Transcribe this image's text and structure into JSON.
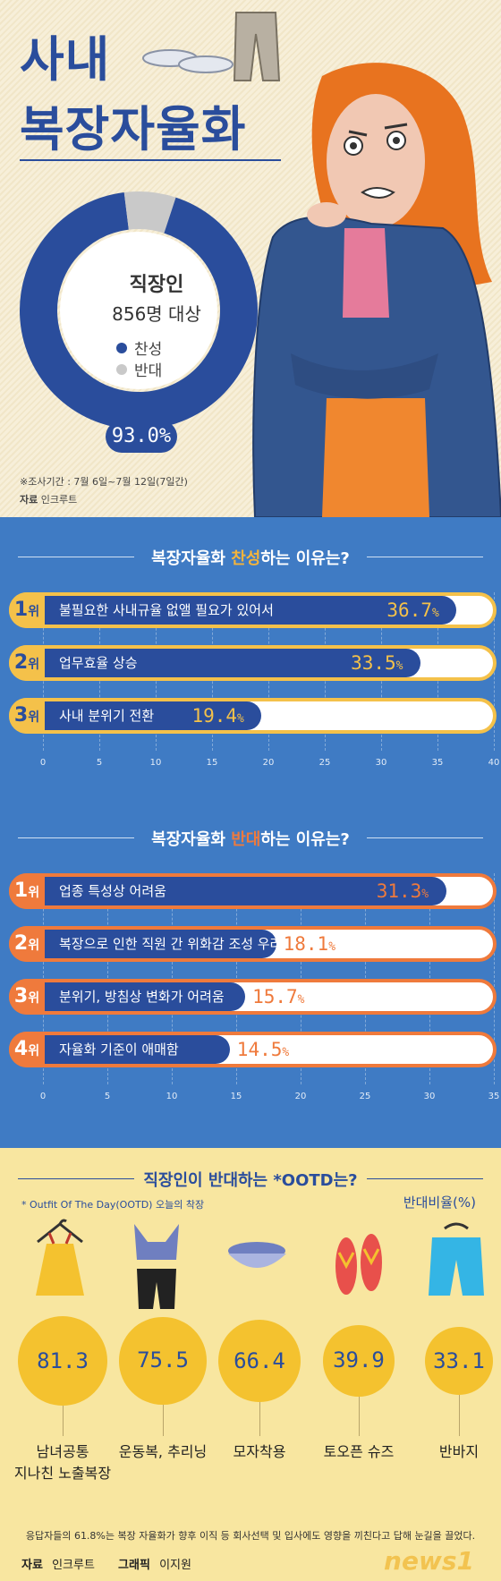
{
  "header": {
    "title_line1": "사내",
    "title_line2": "복장자율화"
  },
  "survey": {
    "subject_line1": "직장인",
    "subject_line2": "856명 대상",
    "legend_agree": "찬성",
    "legend_oppose": "반대",
    "agree_pct_label": "93.0%",
    "period": "※조사기간 : 7월 6일~7월 12일(7일간)",
    "source_label": "자료",
    "source_name": "인크루트",
    "colors": {
      "agree": "#2a4d9c",
      "oppose": "#c9c9c9"
    }
  },
  "chart_data": [
    {
      "type": "pie",
      "categories": [
        "찬성",
        "반대"
      ],
      "values": [
        93.0,
        7.0
      ],
      "subtitle": "직장인 856명 대상"
    },
    {
      "type": "bar",
      "title": "복장자율화 찬성하는 이유는?",
      "title_pre": "복장자율화 ",
      "title_hl": "찬성",
      "title_post": "하는 이유는?",
      "ranks": [
        "1",
        "2",
        "3"
      ],
      "rank_suffix": "위",
      "categories": [
        "불필요한 사내규율 없앨 필요가 있어서",
        "업무효율 상승",
        "사내 분위기 전환"
      ],
      "values": [
        36.7,
        33.5,
        19.4
      ],
      "value_labels": [
        "36.7",
        "33.5",
        "19.4"
      ],
      "unit": "%",
      "ylim": [
        0,
        40
      ],
      "ticks": [
        "0",
        "5",
        "10",
        "15",
        "20",
        "25",
        "30",
        "35",
        "40"
      ]
    },
    {
      "type": "bar",
      "title": "복장자율화 반대하는 이유는?",
      "title_pre": "복장자율화 ",
      "title_hl": "반대",
      "title_post": "하는 이유는?",
      "ranks": [
        "1",
        "2",
        "3",
        "4"
      ],
      "rank_suffix": "위",
      "categories": [
        "업종 특성상 어려움",
        "복장으로 인한 직원 간 위화감 조성 우려",
        "분위기, 방침상 변화가 어려움",
        "자율화 기준이 애매함"
      ],
      "values": [
        31.3,
        18.1,
        15.7,
        14.5
      ],
      "value_labels": [
        "31.3",
        "18.1",
        "15.7",
        "14.5"
      ],
      "unit": "%",
      "ylim": [
        0,
        35
      ],
      "ticks": [
        "0",
        "5",
        "10",
        "15",
        "20",
        "25",
        "30",
        "35"
      ]
    },
    {
      "type": "bar",
      "title": "직장인이 반대하는 *OOTD는?",
      "categories": [
        "남녀공통 지나친 노출복장",
        "운동복, 추리닝",
        "모자착용",
        "토오픈 슈즈",
        "반바지"
      ],
      "category_lines": [
        [
          "남녀공통",
          "지나친 노출복장"
        ],
        [
          "운동복, 추리닝"
        ],
        [
          "모자착용"
        ],
        [
          "토오픈 슈즈"
        ],
        [
          "반바지"
        ]
      ],
      "values": [
        81.3,
        75.5,
        66.4,
        39.9,
        33.1
      ],
      "value_labels": [
        "81.3",
        "75.5",
        "66.4",
        "39.9",
        "33.1"
      ],
      "ylabel": "반대비율(%)"
    }
  ],
  "ootd": {
    "note": "* Outfit Of The Day(OOTD) 오늘의 착장",
    "ratio_label": "반대비율(%)"
  },
  "footer": {
    "note": "응답자들의 61.8%는 복장 자율화가 향후 이직 등 회사선택 및 입사에도 영향을 끼친다고 답해 눈길을 끌었다.",
    "source_label": "자료",
    "source_name": "인크루트",
    "graphic_label": "그래픽",
    "graphic_name": "이지원",
    "brand": "news1"
  }
}
